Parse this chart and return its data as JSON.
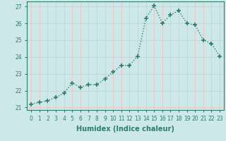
{
  "x": [
    0,
    1,
    2,
    3,
    4,
    5,
    6,
    7,
    8,
    9,
    10,
    11,
    12,
    13,
    14,
    15,
    16,
    17,
    18,
    19,
    20,
    21,
    22,
    23
  ],
  "y": [
    21.2,
    21.3,
    21.4,
    21.6,
    21.85,
    22.45,
    22.2,
    22.35,
    22.35,
    22.7,
    23.1,
    23.5,
    23.5,
    24.05,
    26.3,
    27.05,
    26.0,
    26.5,
    26.75,
    26.0,
    25.9,
    25.0,
    24.8,
    24.05
  ],
  "xlabel": "Humidex (Indice chaleur)",
  "xlim": [
    -0.5,
    23.5
  ],
  "ylim": [
    20.85,
    27.3
  ],
  "yticks": [
    21,
    22,
    23,
    24,
    25,
    26,
    27
  ],
  "xticks": [
    0,
    1,
    2,
    3,
    4,
    5,
    6,
    7,
    8,
    9,
    10,
    11,
    12,
    13,
    14,
    15,
    16,
    17,
    18,
    19,
    20,
    21,
    22,
    23
  ],
  "line_color": "#2d7d6e",
  "bg_color": "#cce8e8",
  "grid_color": "#e8c8c8",
  "marker": "+",
  "marker_size": 5,
  "linewidth": 1.0,
  "tick_fontsize": 5.5,
  "xlabel_fontsize": 7.0
}
